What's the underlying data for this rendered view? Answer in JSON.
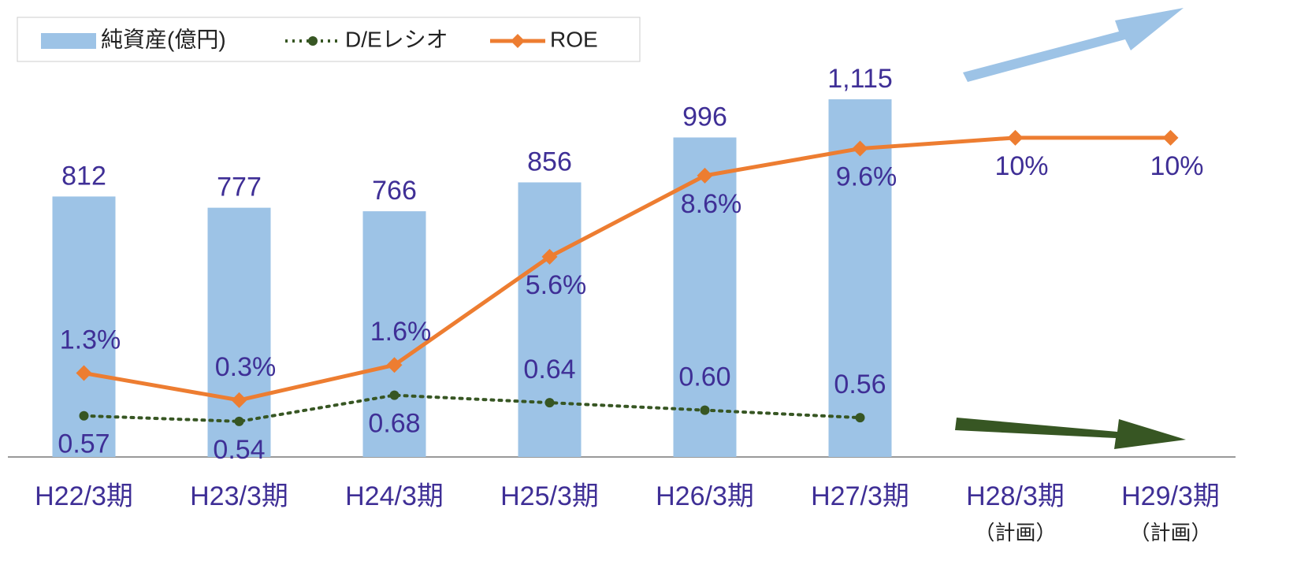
{
  "chart_data": {
    "type": "bar",
    "categories": [
      "H22/3期",
      "H23/3期",
      "H24/3期",
      "H25/3期",
      "H26/3期",
      "H27/3期",
      "H28/3期",
      "H29/3期"
    ],
    "category_notes": [
      null,
      null,
      null,
      null,
      null,
      null,
      "（計画）",
      "（計画）"
    ],
    "ylim": [
      0,
      1400
    ],
    "y2lim": [
      -1.8,
      14.8
    ],
    "y3lim": [
      0.35,
      2.75
    ],
    "series": [
      {
        "name": "純資産(億円)",
        "type": "bar",
        "axis": "y",
        "color": "#9dc3e6",
        "values": [
          812,
          777,
          766,
          856,
          996,
          1115,
          null,
          null
        ],
        "value_labels": [
          "812",
          "777",
          "766",
          "856",
          "996",
          "1,115",
          null,
          null
        ]
      },
      {
        "name": "D/Eレシオ",
        "type": "line",
        "axis": "y3",
        "color": "#375623",
        "dotted": true,
        "values": [
          0.57,
          0.54,
          0.68,
          0.64,
          0.6,
          0.56,
          null,
          null
        ],
        "value_labels": [
          "0.57",
          "0.54",
          "0.68",
          "0.64",
          "0.60",
          "0.56",
          null,
          null
        ]
      },
      {
        "name": "ROE",
        "type": "line",
        "axis": "y2",
        "color": "#ed7d31",
        "values": [
          1.3,
          0.3,
          1.6,
          5.6,
          8.6,
          9.6,
          10,
          10
        ],
        "value_labels": [
          "1.3%",
          "0.3%",
          "1.6%",
          "5.6%",
          "8.6%",
          "9.6%",
          "10%",
          "10%"
        ]
      }
    ]
  }
}
